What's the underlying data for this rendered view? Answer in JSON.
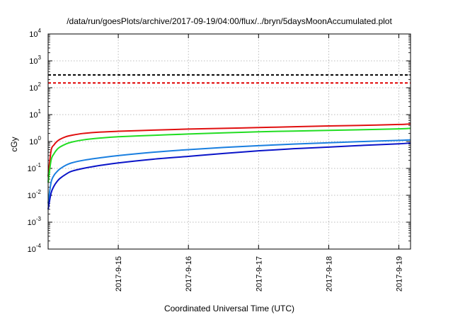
{
  "chart_data": {
    "type": "line",
    "title": "/data/run/goesPlots/archive/2017-09-19/04:00/flux/../bryn/5daysMoonAccumulated.plot",
    "xlabel": "Coordinated Universal Time (UTC)",
    "ylabel": "cGy",
    "yscale": "log",
    "ylim": [
      0.0001,
      10000
    ],
    "y_ticks": [
      {
        "value": 0.0001,
        "base": "10",
        "exp": "-4"
      },
      {
        "value": 0.001,
        "base": "10",
        "exp": "-3"
      },
      {
        "value": 0.01,
        "base": "10",
        "exp": "-2"
      },
      {
        "value": 0.1,
        "base": "10",
        "exp": "-1"
      },
      {
        "value": 1,
        "base": "10",
        "exp": "0"
      },
      {
        "value": 10,
        "base": "10",
        "exp": "1"
      },
      {
        "value": 100,
        "base": "10",
        "exp": "2"
      },
      {
        "value": 1000,
        "base": "10",
        "exp": "3"
      },
      {
        "value": 10000,
        "base": "10",
        "exp": "4"
      }
    ],
    "xlim": [
      "2017-09-14 00:00",
      "2017-09-19 04:00"
    ],
    "x_ticks": [
      "2017-9-15",
      "2017-9-16",
      "2017-9-17",
      "2017-9-18",
      "2017-9-19"
    ],
    "grid": true,
    "reference_lines": [
      {
        "y": 300,
        "color": "#000000",
        "style": "dashed"
      },
      {
        "y": 150,
        "color": "#e00000",
        "style": "dashed"
      }
    ],
    "series": [
      {
        "color": "#e01010",
        "x": [
          "2017-09-14 00:00",
          "2017-09-14 01:00",
          "2017-09-14 02:00",
          "2017-09-14 03:00",
          "2017-09-14 04:00",
          "2017-09-14 06:00",
          "2017-09-14 08:00",
          "2017-09-14 12:00",
          "2017-09-14 18:00",
          "2017-09-15 00:00",
          "2017-09-15 12:00",
          "2017-09-16 00:00",
          "2017-09-16 12:00",
          "2017-09-17 00:00",
          "2017-09-17 12:00",
          "2017-09-18 00:00",
          "2017-09-18 12:00",
          "2017-09-19 00:00",
          "2017-09-19 04:00"
        ],
        "y": [
          0.05,
          0.45,
          0.75,
          1.0,
          1.2,
          1.5,
          1.7,
          2.0,
          2.25,
          2.4,
          2.65,
          2.9,
          3.1,
          3.3,
          3.55,
          3.8,
          4.0,
          4.3,
          4.5
        ]
      },
      {
        "color": "#22dd22",
        "x": [
          "2017-09-14 00:00",
          "2017-09-14 01:00",
          "2017-09-14 02:00",
          "2017-09-14 03:00",
          "2017-09-14 04:00",
          "2017-09-14 06:00",
          "2017-09-14 08:00",
          "2017-09-14 12:00",
          "2017-09-14 18:00",
          "2017-09-15 00:00",
          "2017-09-15 12:00",
          "2017-09-16 00:00",
          "2017-09-16 12:00",
          "2017-09-17 00:00",
          "2017-09-17 12:00",
          "2017-09-18 00:00",
          "2017-09-18 12:00",
          "2017-09-19 00:00",
          "2017-09-19 04:00"
        ],
        "y": [
          0.03,
          0.2,
          0.35,
          0.5,
          0.62,
          0.8,
          0.95,
          1.15,
          1.35,
          1.5,
          1.7,
          1.9,
          2.1,
          2.3,
          2.45,
          2.6,
          2.75,
          2.95,
          3.1
        ]
      },
      {
        "color": "#1a7fe0",
        "x": [
          "2017-09-14 00:00",
          "2017-09-14 01:00",
          "2017-09-14 02:00",
          "2017-09-14 03:00",
          "2017-09-14 04:00",
          "2017-09-14 06:00",
          "2017-09-14 08:00",
          "2017-09-14 12:00",
          "2017-09-14 18:00",
          "2017-09-15 00:00",
          "2017-09-15 12:00",
          "2017-09-16 00:00",
          "2017-09-16 12:00",
          "2017-09-17 00:00",
          "2017-09-17 12:00",
          "2017-09-18 00:00",
          "2017-09-18 12:00",
          "2017-09-19 00:00",
          "2017-09-19 04:00"
        ],
        "y": [
          0.005,
          0.03,
          0.055,
          0.075,
          0.095,
          0.13,
          0.16,
          0.2,
          0.25,
          0.3,
          0.4,
          0.5,
          0.6,
          0.7,
          0.8,
          0.9,
          1.0,
          1.1,
          1.15
        ]
      },
      {
        "color": "#0a14c8",
        "x": [
          "2017-09-14 00:00",
          "2017-09-14 01:00",
          "2017-09-14 02:00",
          "2017-09-14 03:00",
          "2017-09-14 04:00",
          "2017-09-14 06:00",
          "2017-09-14 08:00",
          "2017-09-14 12:00",
          "2017-09-14 18:00",
          "2017-09-15 00:00",
          "2017-09-15 12:00",
          "2017-09-16 00:00",
          "2017-09-16 12:00",
          "2017-09-17 00:00",
          "2017-09-17 12:00",
          "2017-09-18 00:00",
          "2017-09-18 12:00",
          "2017-09-19 00:00",
          "2017-09-19 04:00"
        ],
        "y": [
          0.003,
          0.012,
          0.022,
          0.032,
          0.042,
          0.06,
          0.078,
          0.1,
          0.13,
          0.16,
          0.22,
          0.28,
          0.36,
          0.45,
          0.54,
          0.62,
          0.72,
          0.82,
          0.88
        ]
      }
    ]
  }
}
